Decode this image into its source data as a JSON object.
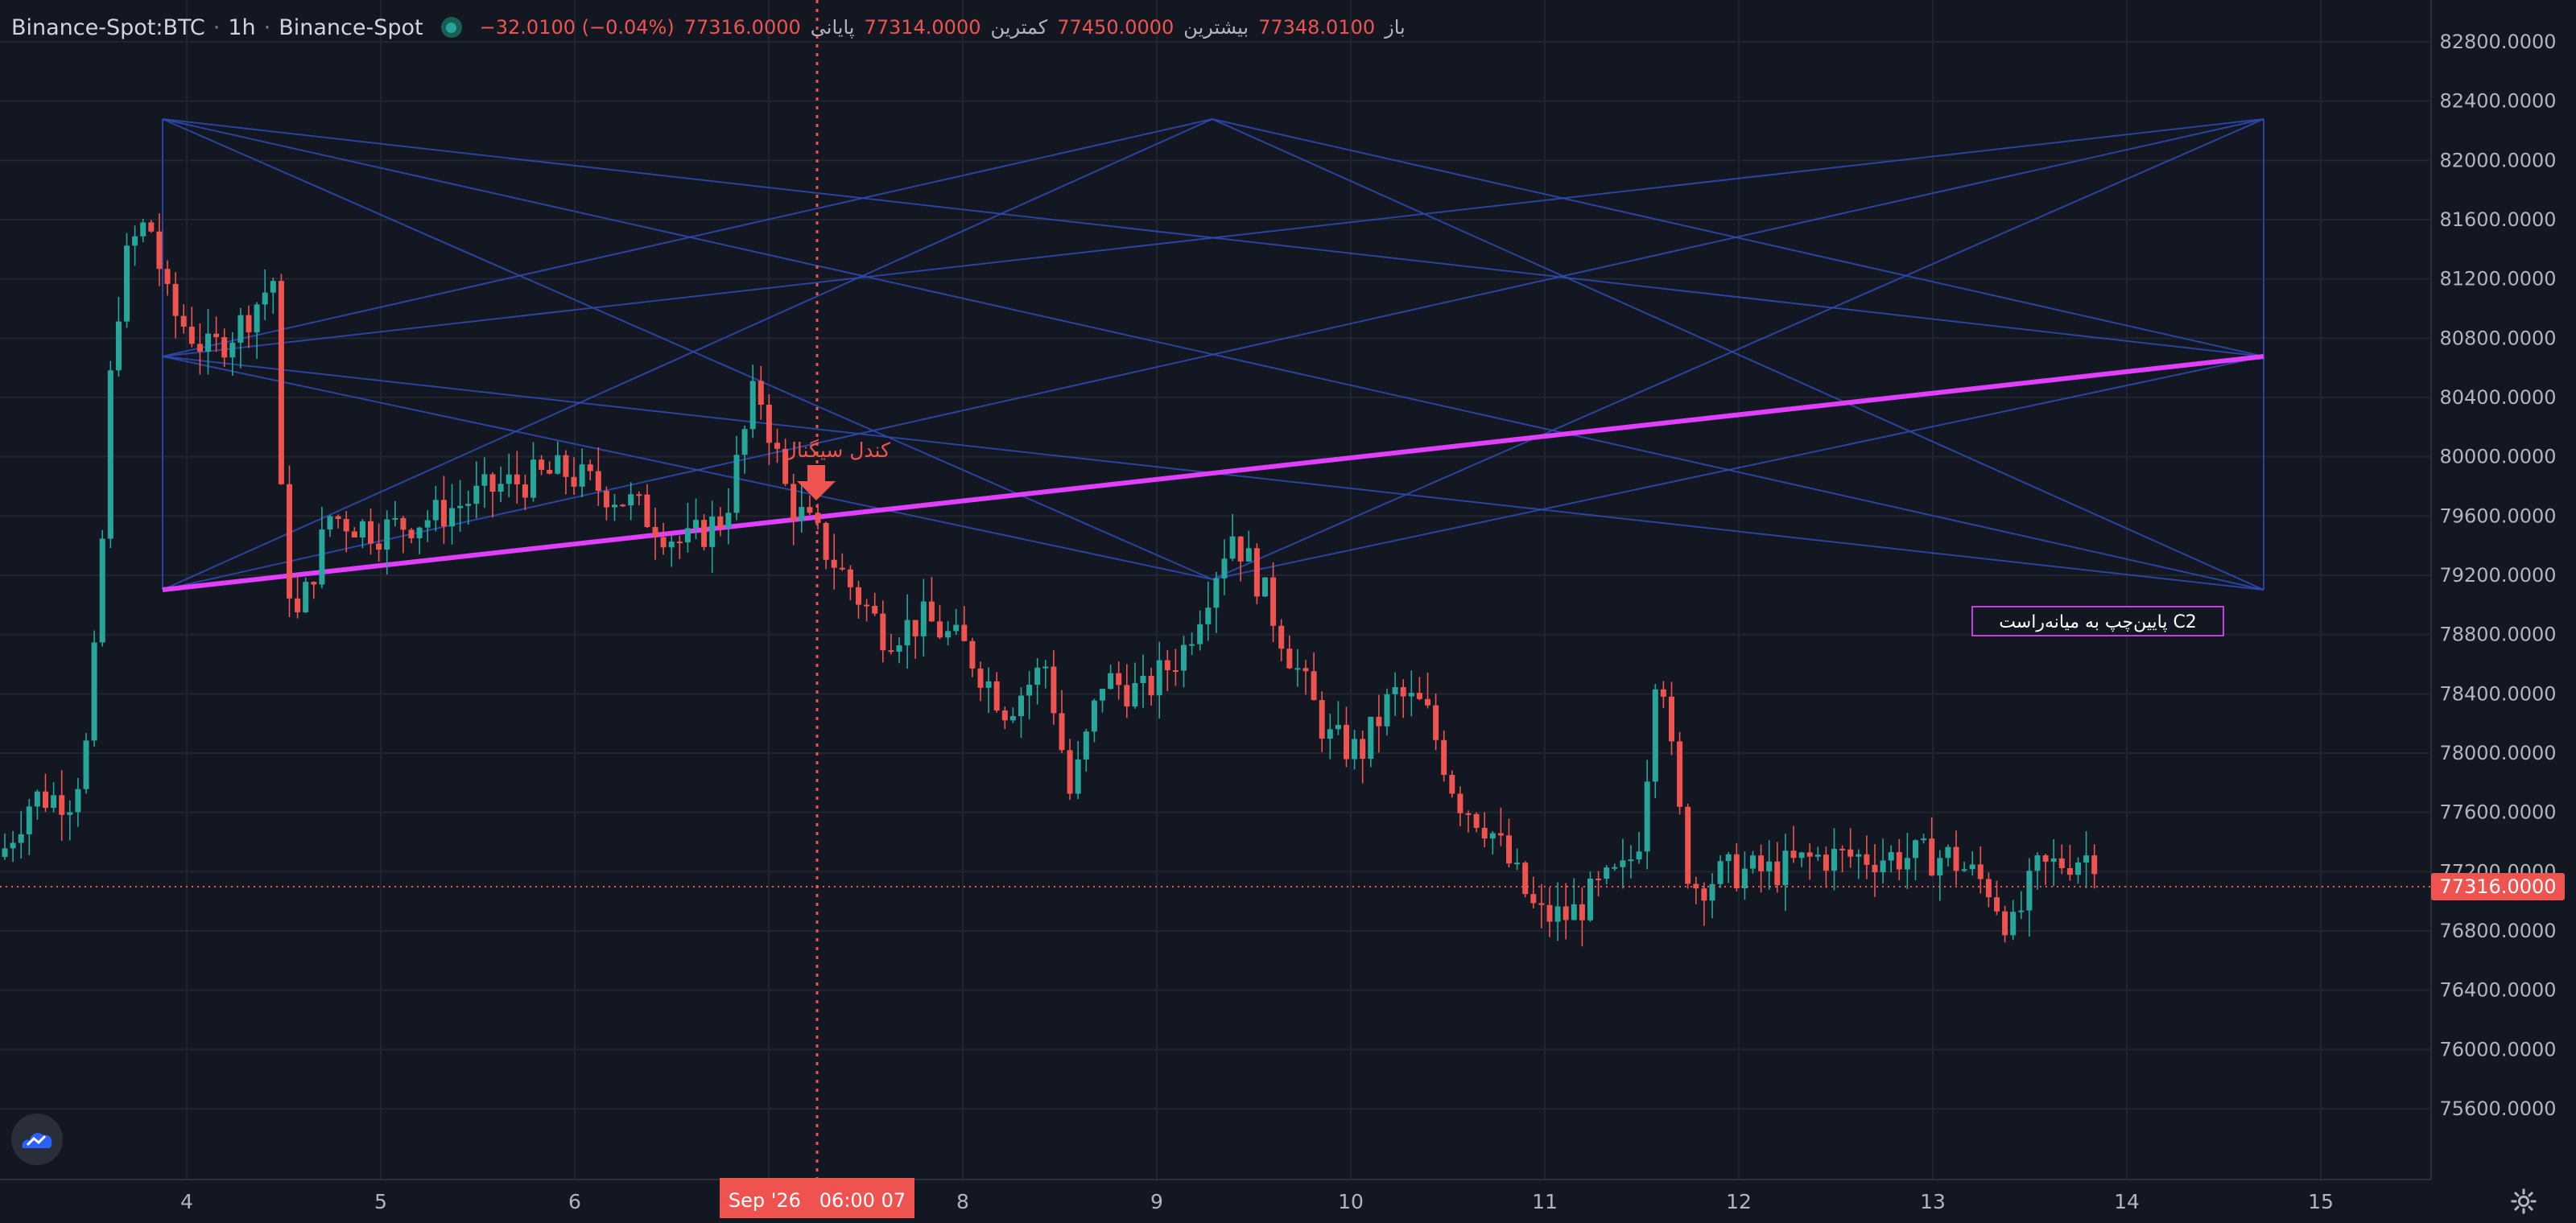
{
  "header": {
    "symbol": "Binance-Spot:BTC",
    "interval": "1h",
    "exchange": "Binance-Spot",
    "open_label": "باز",
    "open": "77348.0100",
    "high_label": "بیشترین",
    "high": "77450.0000",
    "low_label": "کمترین",
    "low": "77314.0000",
    "close_label": "پایانی",
    "close": "77316.0000",
    "change": "−32.0100 (−0.04%)"
  },
  "price_axis": {
    "ticks": [
      "82800.0000",
      "82400.0000",
      "82000.0000",
      "81600.0000",
      "81200.0000",
      "80800.0000",
      "80400.0000",
      "80000.0000",
      "79600.0000",
      "79200.0000",
      "78800.0000",
      "78400.0000",
      "78000.0000",
      "77600.0000",
      "77200.0000",
      "76800.0000",
      "76400.0000",
      "76000.0000",
      "75600.0000"
    ],
    "last_price": "77316.0000"
  },
  "time_axis": {
    "ticks": [
      "4",
      "5",
      "6",
      "7",
      "8",
      "9",
      "10",
      "11",
      "12",
      "13",
      "14",
      "15"
    ],
    "crosshair_label": "Sep '26   06:00 07"
  },
  "annotations": {
    "candle_label": "کندل سیگنال",
    "box_label": "پایین‌چپ به میانه‌راست C2"
  },
  "colors": {
    "background": "#131722",
    "up": "#26a69a",
    "down": "#ef5350",
    "trendline": "#e040fb",
    "pattern_lines": "#2962ff",
    "crosshair": "#ef5350"
  },
  "icons": {
    "logo": "tradingview-cloud-icon",
    "settings": "gear-icon"
  }
}
